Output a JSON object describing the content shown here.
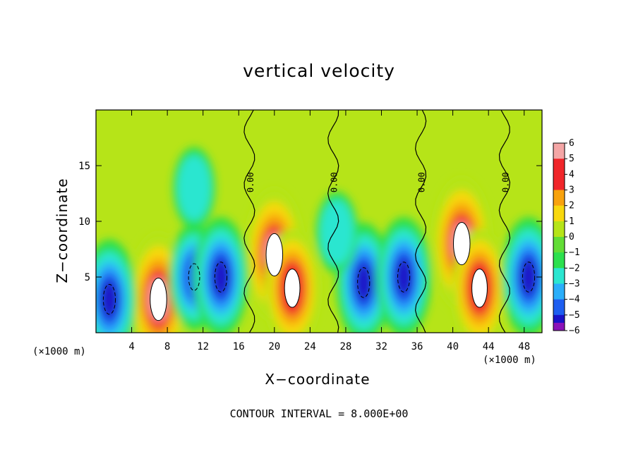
{
  "chart_data": {
    "type": "heatmap",
    "title": "vertical velocity",
    "xlabel": "X−coordinate",
    "ylabel": "Z−coordinate",
    "x_unit": "(×1000 m)",
    "x_unit_right": "(×1000 m)",
    "note": "CONTOUR INTERVAL = 8.000E+00",
    "xlim": [
      0,
      50
    ],
    "ylim": [
      0,
      20
    ],
    "x_ticks": [
      4,
      8,
      12,
      16,
      20,
      24,
      28,
      32,
      36,
      40,
      44,
      48
    ],
    "y_ticks": [
      5,
      10,
      15
    ],
    "colorbar": {
      "levels": [
        6,
        5,
        4,
        3,
        2,
        1,
        0,
        -1,
        -2,
        -3,
        -4,
        -5,
        -6
      ],
      "colors": [
        "#f4a6a6",
        "#f0262a",
        "#f0262a",
        "#f8a20e",
        "#f8d80e",
        "#b6e418",
        "#62dd36",
        "#2ce04e",
        "#2be6d0",
        "#2aaefa",
        "#1e5ef0",
        "#1a12c8",
        "#8a12b8"
      ]
    },
    "contour_labels": [
      "0.00",
      "0.00",
      "0.00",
      "0.00"
    ],
    "cells": [
      {
        "x": 7,
        "z": 3,
        "w": 6
      },
      {
        "x": 20,
        "z": 7,
        "w": 6
      },
      {
        "x": 22,
        "z": 4,
        "w": 5
      },
      {
        "x": 41,
        "z": 8,
        "w": 6
      },
      {
        "x": 43,
        "z": 4,
        "w": 5
      },
      {
        "x": 1.5,
        "z": 3,
        "w": -5
      },
      {
        "x": 11,
        "z": 5,
        "w": -4
      },
      {
        "x": 14,
        "z": 5,
        "w": -5
      },
      {
        "x": 30,
        "z": 4.5,
        "w": -5
      },
      {
        "x": 34.5,
        "z": 5,
        "w": -5
      },
      {
        "x": 48.5,
        "z": 5,
        "w": -5
      },
      {
        "x": 11,
        "z": 13,
        "w": -2
      },
      {
        "x": 27,
        "z": 9,
        "w": -2
      }
    ]
  }
}
